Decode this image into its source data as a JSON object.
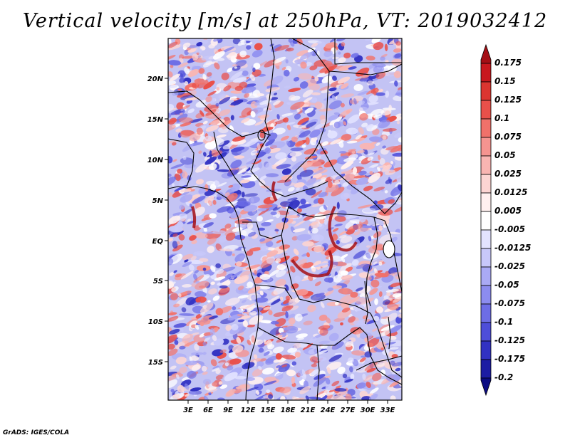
{
  "title": "Vertical velocity [m/s] at 250hPa, VT: 2019032412",
  "credit": "GrADS: IGES/COLA",
  "map": {
    "lon_range": [
      0,
      35
    ],
    "lat_range": [
      -19.5,
      24.5
    ],
    "lat_ticks": [
      "20N",
      "15N",
      "10N",
      "5N",
      "EQ",
      "5S",
      "10S",
      "15S"
    ],
    "lon_ticks": [
      "3E",
      "6E",
      "9E",
      "12E",
      "15E",
      "18E",
      "21E",
      "24E",
      "27E",
      "30E",
      "33E"
    ]
  },
  "colorbar": {
    "labels": [
      "0.175",
      "0.15",
      "0.125",
      "0.1",
      "0.075",
      "0.05",
      "0.025",
      "0.0125",
      "0.005",
      "-0.005",
      "-0.0125",
      "-0.025",
      "-0.05",
      "-0.075",
      "-0.1",
      "-0.125",
      "-0.175",
      "-0.2"
    ],
    "colors": [
      "#a50f15",
      "#c8181e",
      "#dc3530",
      "#e9504a",
      "#f0716a",
      "#f59490",
      "#f9b5b2",
      "#fcd5d3",
      "#fff0ef",
      "#ffffff",
      "#e3e3ff",
      "#c8c8fa",
      "#aaaaf5",
      "#8c8cef",
      "#6d6de6",
      "#4e4ed9",
      "#3131c2",
      "#1c1ca3",
      "#0b0b82"
    ]
  }
}
